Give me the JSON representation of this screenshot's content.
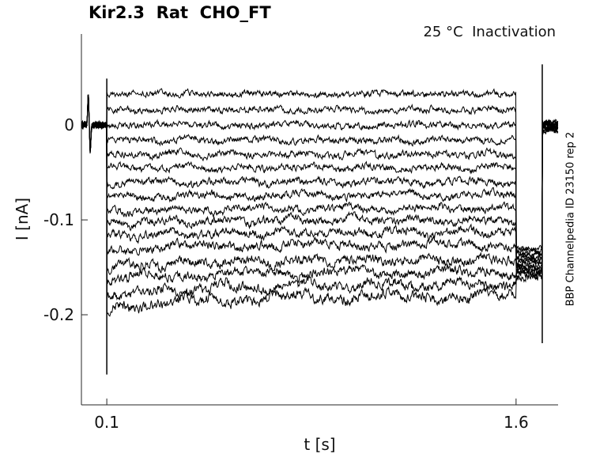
{
  "chart_data": {
    "type": "line",
    "title": "Kir2.3  Rat  CHO_FT",
    "annotation": "25 °C  Inactivation",
    "watermark": "BBP Channelpedia ID 23150 rep 2",
    "xlabel": "t [s]",
    "ylabel": "I [nA]",
    "xlim": [
      0.007,
      1.754
    ],
    "ylim": [
      -0.295,
      0.096
    ],
    "x_ticks": [
      {
        "value": 0.1,
        "label": "0.1"
      },
      {
        "value": 1.6,
        "label": "1.6"
      }
    ],
    "y_ticks": [
      {
        "value": 0,
        "label": "0"
      },
      {
        "value": -0.1,
        "label": "-0.1"
      },
      {
        "value": -0.2,
        "label": "-0.2"
      }
    ],
    "grid": false,
    "legend": null,
    "colors": {
      "trace": "#000000",
      "axis": "#262626",
      "text": "#111111",
      "background": "#ffffff"
    },
    "protocol": {
      "baseline_nA": 0,
      "pulse_start_s": 0.1,
      "pulse_end_s": 1.6,
      "tail_end_s": 1.696,
      "sweep_end_s": 1.754,
      "post_baseline_nA": -0.002,
      "start_artifact": {
        "t_s": 0.035,
        "peak_nA": 0.034,
        "trough_nA": -0.028
      }
    },
    "transients": [
      {
        "t_s": 0.1,
        "from_nA": 0.049,
        "to_nA": -0.263
      },
      {
        "t_s": 1.696,
        "from_nA": 0.064,
        "to_nA": -0.23
      }
    ],
    "traces": [
      {
        "steady_nA": 0.033,
        "tail_nA": -0.13,
        "noise_nA": 0.004,
        "decay_nA": 0.0,
        "tau_s": 0.3
      },
      {
        "steady_nA": 0.016,
        "tail_nA": -0.132,
        "noise_nA": 0.004,
        "decay_nA": 0.0,
        "tau_s": 0.3
      },
      {
        "steady_nA": 0.0,
        "tail_nA": -0.134,
        "noise_nA": 0.0042,
        "decay_nA": 0.0,
        "tau_s": 0.3
      },
      {
        "steady_nA": -0.016,
        "tail_nA": -0.136,
        "noise_nA": 0.0042,
        "decay_nA": 0.0,
        "tau_s": 0.3
      },
      {
        "steady_nA": -0.031,
        "tail_nA": -0.138,
        "noise_nA": 0.0044,
        "decay_nA": 0.0,
        "tau_s": 0.3
      },
      {
        "steady_nA": -0.045,
        "tail_nA": -0.14,
        "noise_nA": 0.0044,
        "decay_nA": 0.0,
        "tau_s": 0.3
      },
      {
        "steady_nA": -0.06,
        "tail_nA": -0.142,
        "noise_nA": 0.0046,
        "decay_nA": 0.0,
        "tau_s": 0.3
      },
      {
        "steady_nA": -0.074,
        "tail_nA": -0.144,
        "noise_nA": 0.0046,
        "decay_nA": -0.002,
        "tau_s": 0.3
      },
      {
        "steady_nA": -0.088,
        "tail_nA": -0.146,
        "noise_nA": 0.0048,
        "decay_nA": -0.003,
        "tau_s": 0.3
      },
      {
        "steady_nA": -0.1,
        "tail_nA": -0.148,
        "noise_nA": 0.005,
        "decay_nA": -0.004,
        "tau_s": 0.3
      },
      {
        "steady_nA": -0.113,
        "tail_nA": -0.15,
        "noise_nA": 0.0052,
        "decay_nA": -0.005,
        "tau_s": 0.3
      },
      {
        "steady_nA": -0.126,
        "tail_nA": -0.152,
        "noise_nA": 0.0055,
        "decay_nA": -0.006,
        "tau_s": 0.3
      },
      {
        "steady_nA": -0.142,
        "tail_nA": -0.154,
        "noise_nA": 0.0058,
        "decay_nA": -0.009,
        "tau_s": 0.28
      },
      {
        "steady_nA": -0.155,
        "tail_nA": -0.156,
        "noise_nA": 0.006,
        "decay_nA": -0.008,
        "tau_s": 0.3
      },
      {
        "steady_nA": -0.168,
        "tail_nA": -0.158,
        "noise_nA": 0.0063,
        "decay_nA": -0.012,
        "tau_s": 0.33
      },
      {
        "steady_nA": -0.18,
        "tail_nA": -0.16,
        "noise_nA": 0.0065,
        "decay_nA": -0.013,
        "tau_s": 0.35
      }
    ]
  }
}
